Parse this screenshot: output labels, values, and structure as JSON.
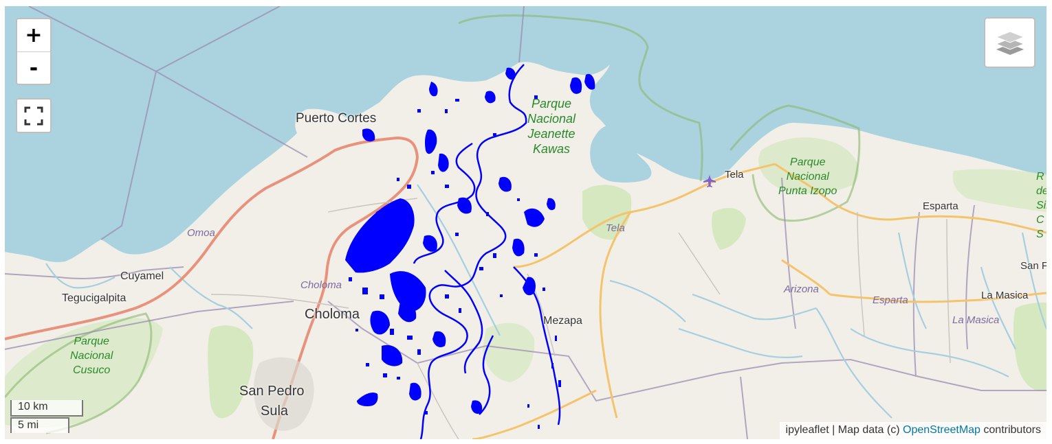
{
  "map": {
    "zoom_in_label": "+",
    "zoom_out_label": "-",
    "scale_km": "10 km",
    "scale_mi": "5 mi",
    "attribution": {
      "prefix": "ipyleaflet | Map data (c) ",
      "link": "OpenStreetMap",
      "suffix": " contributors"
    },
    "colors": {
      "water": "#aad3df",
      "land": "#f2efe9",
      "flood_overlay": "#0000ff",
      "park": "#cde6b5",
      "motorway": "#e8927c",
      "primary_road": "#f5c36b",
      "boundary": "#8f7fa8",
      "river": "#a5cfe0"
    },
    "labels": {
      "puerto_cortes": "Puerto Cortes",
      "omoa": "Omoa",
      "cuyamel": "Cuyamel",
      "tegucigalpita": "Tegucigalpita",
      "choloma_muni": "Choloma",
      "choloma": "Choloma",
      "san_pedro": "San Pedro",
      "sula": "Sula",
      "mezapa": "Mezapa",
      "tela": "Tela",
      "tela_muni": "Tela",
      "esparta": "Esparta",
      "esparta_muni": "Esparta",
      "arizona": "Arizona",
      "la_masica": "La Masica",
      "la_masica_muni": "La Masica",
      "san_fr": "San Fr",
      "cusuco_1": "Parque",
      "cusuco_2": "Nacional",
      "cusuco_3": "Cusuco",
      "jeanette_1": "Parque",
      "jeanette_2": "Nacional",
      "jeanette_3": "Jeanette",
      "jeanette_4": "Kawas",
      "izopo_1": "Parque",
      "izopo_2": "Nacional",
      "izopo_3": "Punta Izopo",
      "edge_1": "R",
      "edge_2": "de",
      "edge_3": "Sil",
      "edge_4": "C",
      "edge_5": "S"
    },
    "icons": [
      "zoom-in",
      "zoom-out",
      "fullscreen-icon",
      "layers-icon",
      "airport-icon"
    ]
  }
}
